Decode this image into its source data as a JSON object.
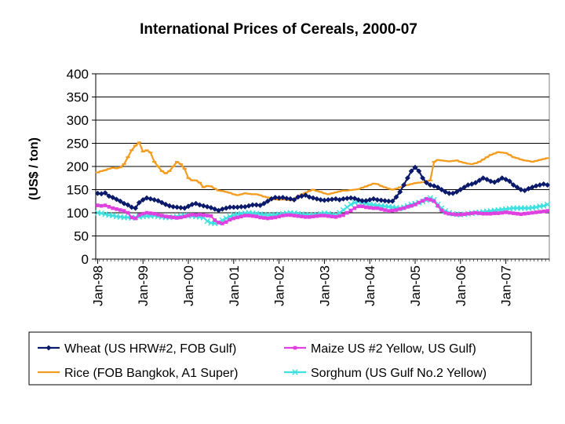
{
  "chart_data": {
    "type": "line",
    "title": "International Prices of Cereals, 2000-07",
    "xlabel": "",
    "ylabel": "(US$ / ton)",
    "ylim": [
      0,
      400
    ],
    "yticks": [
      0,
      50,
      100,
      150,
      200,
      250,
      300,
      350,
      400
    ],
    "xticks": [
      "Jan-98",
      "Jan-99",
      "Jan-00",
      "Jan-01",
      "Jan-02",
      "Jan-03",
      "Jan-04",
      "Jan-05",
      "Jan-06",
      "Jan-07"
    ],
    "x_start": "Jan-98",
    "months": 120,
    "grid": "horizontal",
    "legend_position": "bottom",
    "series": [
      {
        "name": "Wheat (US HRW#2, FOB Gulf)",
        "color": "#0b1a6b",
        "marker": "diamond",
        "values": [
          142,
          141,
          143,
          136,
          133,
          129,
          125,
          120,
          117,
          112,
          110,
          122,
          128,
          132,
          130,
          128,
          126,
          122,
          118,
          115,
          113,
          112,
          111,
          110,
          114,
          118,
          120,
          117,
          115,
          113,
          111,
          108,
          105,
          108,
          110,
          112,
          112,
          112,
          113,
          113,
          115,
          117,
          117,
          116,
          120,
          125,
          130,
          133,
          132,
          133,
          131,
          130,
          128,
          134,
          136,
          138,
          134,
          132,
          130,
          128,
          127,
          128,
          129,
          130,
          128,
          130,
          131,
          132,
          131,
          128,
          126,
          126,
          128,
          130,
          128,
          127,
          126,
          125,
          125,
          134,
          145,
          160,
          175,
          190,
          198,
          190,
          175,
          165,
          160,
          158,
          155,
          150,
          145,
          142,
          142,
          145,
          150,
          155,
          160,
          162,
          165,
          170,
          175,
          172,
          168,
          166,
          170,
          175,
          172,
          168,
          160,
          155,
          150,
          148,
          152,
          155,
          158,
          160,
          162,
          160
        ]
      },
      {
        "name": "Maize US #2 Yellow, US Gulf)",
        "color": "#e040e0",
        "marker": "square",
        "values": [
          116,
          115,
          116,
          113,
          110,
          108,
          106,
          104,
          100,
          90,
          88,
          95,
          98,
          100,
          99,
          98,
          96,
          94,
          92,
          91,
          90,
          89,
          90,
          92,
          94,
          96,
          95,
          96,
          95,
          94,
          93,
          84,
          79,
          77,
          80,
          85,
          88,
          90,
          92,
          94,
          94,
          93,
          92,
          90,
          89,
          88,
          89,
          90,
          92,
          94,
          95,
          95,
          94,
          93,
          92,
          91,
          91,
          92,
          93,
          94,
          94,
          93,
          92,
          91,
          93,
          95,
          100,
          105,
          110,
          114,
          114,
          112,
          111,
          110,
          110,
          108,
          106,
          104,
          105,
          106,
          108,
          110,
          113,
          115,
          118,
          122,
          126,
          130,
          128,
          125,
          115,
          105,
          100,
          98,
          97,
          96,
          96,
          97,
          98,
          99,
          100,
          99,
          98,
          98,
          98,
          99,
          99,
          100,
          101,
          100,
          99,
          98,
          97,
          98,
          99,
          100,
          101,
          102,
          103,
          104
        ]
      },
      {
        "name": "Rice (FOB Bangkok, A1 Super)",
        "color": "#f39c1f",
        "marker": "dash",
        "values": [
          187,
          190,
          192,
          195,
          197,
          196,
          198,
          205,
          220,
          235,
          245,
          252,
          232,
          235,
          230,
          210,
          200,
          190,
          185,
          190,
          200,
          210,
          205,
          195,
          175,
          170,
          170,
          165,
          155,
          158,
          157,
          152,
          148,
          147,
          145,
          143,
          140,
          138,
          140,
          142,
          141,
          140,
          140,
          138,
          135,
          133,
          131,
          129,
          128,
          129,
          128,
          127,
          130,
          135,
          140,
          143,
          147,
          150,
          147,
          145,
          142,
          140,
          142,
          144,
          146,
          148,
          148,
          149,
          150,
          151,
          154,
          157,
          160,
          163,
          162,
          158,
          155,
          152,
          150,
          152,
          155,
          158,
          160,
          162,
          164,
          165,
          166,
          168,
          170,
          210,
          214,
          213,
          212,
          211,
          212,
          213,
          210,
          208,
          206,
          205,
          207,
          210,
          215,
          220,
          225,
          228,
          231,
          230,
          229,
          225,
          220,
          218,
          215,
          213,
          212,
          210,
          212,
          214,
          216,
          218
        ]
      },
      {
        "name": "Sorghum (US Gulf No.2 Yellow)",
        "color": "#3fe0e0",
        "marker": "x",
        "values": [
          100,
          99,
          97,
          95,
          94,
          92,
          91,
          90,
          90,
          89,
          90,
          91,
          92,
          93,
          93,
          94,
          92,
          91,
          90,
          90,
          91,
          92,
          93,
          94,
          94,
          93,
          92,
          91,
          90,
          82,
          78,
          77,
          79,
          84,
          88,
          92,
          95,
          97,
          98,
          99,
          100,
          99,
          98,
          97,
          96,
          95,
          95,
          96,
          97,
          98,
          99,
          100,
          99,
          98,
          97,
          96,
          95,
          95,
          96,
          98,
          99,
          98,
          96,
          95,
          100,
          106,
          112,
          118,
          122,
          124,
          122,
          120,
          118,
          117,
          116,
          115,
          114,
          113,
          112,
          111,
          110,
          112,
          115,
          118,
          120,
          122,
          124,
          127,
          132,
          128,
          118,
          110,
          104,
          100,
          98,
          97,
          96,
          97,
          98,
          99,
          100,
          101,
          102,
          103,
          104,
          105,
          106,
          107,
          108,
          109,
          110,
          110,
          110,
          110,
          110,
          111,
          112,
          114,
          115,
          118
        ]
      }
    ]
  }
}
